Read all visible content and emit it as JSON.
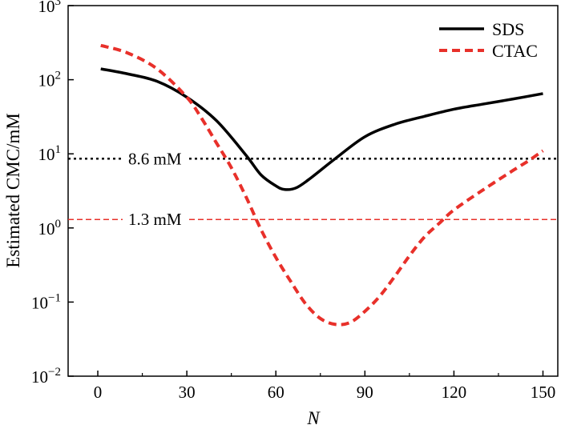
{
  "chart_data": {
    "type": "line",
    "xlabel": "N",
    "ylabel": "Estimated CMC/mM",
    "xlim": [
      -10,
      155
    ],
    "ylim": [
      0.01,
      1000
    ],
    "y_scale": "log",
    "x_ticks": [
      0,
      30,
      60,
      90,
      120,
      150
    ],
    "y_ticks": [
      {
        "value": 0.01,
        "base": "10",
        "exp": "−2"
      },
      {
        "value": 0.1,
        "base": "10",
        "exp": "−1"
      },
      {
        "value": 1,
        "base": "10",
        "exp": "0"
      },
      {
        "value": 10,
        "base": "10",
        "exp": "1"
      },
      {
        "value": 100,
        "base": "10",
        "exp": "2"
      },
      {
        "value": 1000,
        "base": "10",
        "exp": "3"
      }
    ],
    "grid": false,
    "legend_position": "top-right",
    "series": [
      {
        "name": "SDS",
        "style": "solid",
        "color": "#000000",
        "x": [
          1,
          10,
          20,
          30,
          40,
          50,
          55,
          60,
          63,
          67,
          72,
          80,
          90,
          100,
          110,
          120,
          130,
          140,
          150
        ],
        "y": [
          140,
          120,
          95,
          58,
          28,
          9.5,
          5.2,
          3.7,
          3.3,
          3.5,
          4.8,
          8.6,
          17,
          25,
          32,
          40,
          47,
          55,
          65
        ]
      },
      {
        "name": "CTAC",
        "style": "dashed",
        "color": "#e8302a",
        "x": [
          1,
          10,
          20,
          30,
          35,
          40,
          45,
          50,
          55,
          60,
          65,
          70,
          75,
          80,
          85,
          90,
          95,
          100,
          105,
          110,
          115,
          120,
          130,
          140,
          145,
          150
        ],
        "y": [
          290,
          230,
          140,
          58,
          30,
          14,
          6.5,
          2.6,
          0.95,
          0.4,
          0.19,
          0.095,
          0.06,
          0.05,
          0.053,
          0.075,
          0.12,
          0.22,
          0.42,
          0.75,
          1.15,
          1.75,
          3.3,
          6.0,
          8.0,
          11
        ]
      }
    ],
    "reference_lines": [
      {
        "y": 8.6,
        "label": "8.6 mM",
        "color": "#000000",
        "style": "dotted"
      },
      {
        "y": 1.3,
        "label": "1.3 mM",
        "color": "#e8302a",
        "style": "dashed"
      }
    ]
  }
}
